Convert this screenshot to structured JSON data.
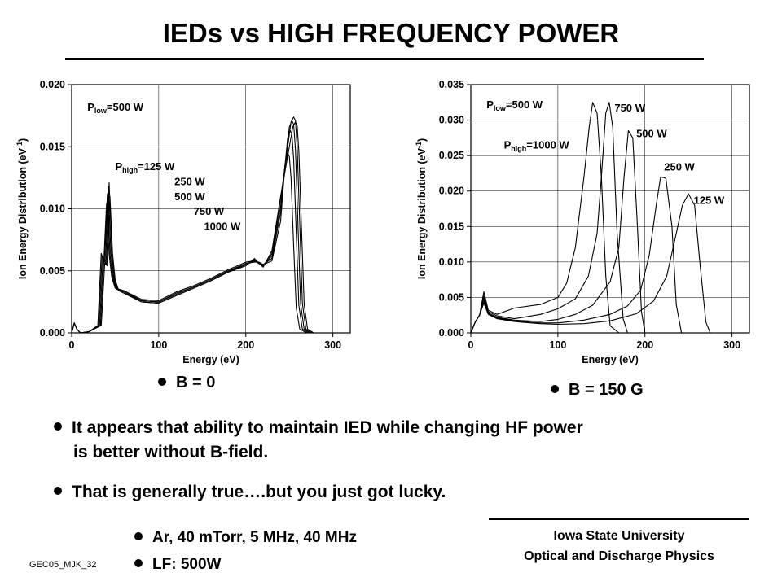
{
  "title": "IEDs vs HIGH FREQUENCY POWER",
  "left_label": "B = 0",
  "right_label": "B = 150 G",
  "bullets": {
    "line1": "It appears that ability to maintain IED while changing HF power",
    "line1b": "is better without B-field.",
    "line2": "That is generally true….but you just got lucky."
  },
  "conditions": [
    "Ar, 40 mTorr,  5 MHz, 40 MHz",
    "LF: 500W"
  ],
  "footer": {
    "line1": "Iowa State University",
    "line2": "Optical and Discharge Physics",
    "code": "GEC05_MJK_32"
  },
  "chart_data": [
    {
      "type": "line",
      "xlabel": "Energy (eV)",
      "ylabel": "Ion Energy Distribution (eV",
      "ylabel_sup": "-1",
      "ylabel_close": ")",
      "xlim": [
        0,
        320
      ],
      "ylim": [
        0,
        0.02
      ],
      "xticks": [
        0,
        100,
        200,
        300
      ],
      "xtick_labels": [
        "0",
        "100",
        "200",
        "300"
      ],
      "yticks": [
        0,
        0.005,
        0.01,
        0.015,
        0.02
      ],
      "ytick_labels": [
        "0.000",
        "0.005",
        "0.010",
        "0.015",
        "0.020"
      ],
      "annotations": [
        {
          "prefix": "P",
          "sub": "low",
          "suffix": "=500  W",
          "x": 18,
          "y": 0.0179
        },
        {
          "prefix": "P",
          "sub": "high",
          "suffix": "=125 W",
          "x": 50,
          "y": 0.0131
        },
        {
          "prefix": "",
          "sub": "",
          "suffix": "250 W",
          "x": 118,
          "y": 0.0119
        },
        {
          "prefix": "",
          "sub": "",
          "suffix": "500 W",
          "x": 118,
          "y": 0.0107
        },
        {
          "prefix": "",
          "sub": "",
          "suffix": "750 W",
          "x": 140,
          "y": 0.0095
        },
        {
          "prefix": "",
          "sub": "",
          "suffix": "1000 W",
          "x": 152,
          "y": 0.0083
        }
      ],
      "series": [
        {
          "x": [
            0,
            3,
            6,
            10,
            20,
            30,
            34,
            37,
            40,
            43,
            46,
            50,
            60,
            80,
            100,
            120,
            140,
            160,
            180,
            200,
            210,
            215,
            220,
            230,
            240,
            245,
            248,
            250,
            252,
            255,
            258,
            262,
            270,
            320
          ],
          "y": [
            0,
            0.0008,
            0.0003,
            0,
            0.0001,
            0.0006,
            0.0064,
            0.0058,
            0.0104,
            0.0063,
            0.0045,
            0.0036,
            0.0034,
            0.0027,
            0.0026,
            0.0033,
            0.0038,
            0.0044,
            0.0051,
            0.0057,
            0.0058,
            0.0057,
            0.0055,
            0.0058,
            0.009,
            0.0135,
            0.0145,
            0.0142,
            0.0125,
            0.007,
            0.002,
            0.0003,
            0,
            0
          ]
        },
        {
          "x": [
            0,
            3,
            6,
            10,
            20,
            31,
            35,
            38,
            41,
            44,
            47,
            51,
            60,
            80,
            100,
            120,
            140,
            160,
            180,
            200,
            210,
            215,
            220,
            230,
            240,
            248,
            251,
            253,
            255,
            258,
            261,
            265,
            272,
            320
          ],
          "y": [
            0,
            0.0008,
            0.0003,
            0,
            0.0001,
            0.0006,
            0.0062,
            0.0058,
            0.0112,
            0.0064,
            0.0044,
            0.0036,
            0.0034,
            0.0026,
            0.0025,
            0.0032,
            0.0037,
            0.0043,
            0.005,
            0.0056,
            0.0057,
            0.0057,
            0.0055,
            0.006,
            0.0097,
            0.0157,
            0.0163,
            0.016,
            0.014,
            0.008,
            0.0022,
            0.0003,
            0,
            0
          ]
        },
        {
          "x": [
            0,
            3,
            6,
            10,
            20,
            32,
            36,
            39,
            42,
            45,
            48,
            52,
            60,
            80,
            100,
            120,
            140,
            160,
            180,
            200,
            210,
            215,
            220,
            230,
            240,
            250,
            253,
            255,
            257,
            260,
            263,
            267,
            274,
            320
          ],
          "y": [
            0,
            0.0008,
            0.0003,
            0,
            0.0001,
            0.0006,
            0.006,
            0.0056,
            0.0118,
            0.0065,
            0.0044,
            0.0035,
            0.0033,
            0.0026,
            0.0025,
            0.0031,
            0.0037,
            0.0043,
            0.005,
            0.0055,
            0.0058,
            0.0056,
            0.0054,
            0.0062,
            0.0102,
            0.0166,
            0.0171,
            0.0168,
            0.0148,
            0.0085,
            0.0023,
            0.0003,
            0,
            0
          ]
        },
        {
          "x": [
            0,
            3,
            6,
            10,
            20,
            33,
            37,
            40,
            43,
            46,
            49,
            53,
            60,
            80,
            100,
            120,
            140,
            160,
            180,
            200,
            210,
            215,
            220,
            230,
            240,
            252,
            255,
            257,
            259,
            262,
            265,
            269,
            276,
            320
          ],
          "y": [
            0,
            0.0008,
            0.0003,
            0,
            0.0001,
            0.0006,
            0.0058,
            0.0055,
            0.0121,
            0.0065,
            0.0043,
            0.0035,
            0.0033,
            0.0025,
            0.0024,
            0.003,
            0.0036,
            0.0042,
            0.0049,
            0.0055,
            0.0059,
            0.0056,
            0.0054,
            0.0064,
            0.0108,
            0.017,
            0.0174,
            0.0171,
            0.015,
            0.0088,
            0.0024,
            0.0003,
            0,
            0
          ]
        },
        {
          "x": [
            0,
            3,
            6,
            10,
            20,
            34,
            38,
            41,
            44,
            47,
            50,
            54,
            60,
            80,
            100,
            120,
            140,
            160,
            180,
            200,
            210,
            215,
            220,
            230,
            240,
            254,
            257,
            259,
            261,
            264,
            267,
            271,
            278,
            320
          ],
          "y": [
            0,
            0.0008,
            0.0003,
            0,
            0.0001,
            0.0006,
            0.0056,
            0.0054,
            0.011,
            0.0064,
            0.0043,
            0.0034,
            0.0032,
            0.0025,
            0.0024,
            0.003,
            0.0036,
            0.0042,
            0.0049,
            0.0054,
            0.006,
            0.0056,
            0.0053,
            0.0066,
            0.011,
            0.0166,
            0.017,
            0.0167,
            0.0146,
            0.0085,
            0.0023,
            0.0003,
            0,
            0
          ]
        }
      ]
    },
    {
      "type": "line",
      "xlabel": "Energy (eV)",
      "ylabel": "Ion Energy Distribution (eV",
      "ylabel_sup": "-1",
      "ylabel_close": ")",
      "xlim": [
        0,
        320
      ],
      "ylim": [
        0,
        0.035
      ],
      "xticks": [
        0,
        100,
        200,
        300
      ],
      "xtick_labels": [
        "0",
        "100",
        "200",
        "300"
      ],
      "yticks": [
        0,
        0.005,
        0.01,
        0.015,
        0.02,
        0.025,
        0.03,
        0.035
      ],
      "ytick_labels": [
        "0.000",
        "0.005",
        "0.010",
        "0.015",
        "0.020",
        "0.025",
        "0.030",
        "0.035"
      ],
      "annotations": [
        {
          "prefix": "P",
          "sub": "low",
          "suffix": "=500  W",
          "x": 18,
          "y": 0.0317
        },
        {
          "prefix": "P",
          "sub": "high",
          "suffix": "=1000 W",
          "x": 38,
          "y": 0.026
        },
        {
          "prefix": "",
          "sub": "",
          "suffix": "750 W",
          "x": 165,
          "y": 0.0312
        },
        {
          "prefix": "",
          "sub": "",
          "suffix": "500 W",
          "x": 190,
          "y": 0.0276
        },
        {
          "prefix": "",
          "sub": "",
          "suffix": "250 W",
          "x": 222,
          "y": 0.0229
        },
        {
          "prefix": "",
          "sub": "",
          "suffix": "125 W",
          "x": 256,
          "y": 0.0182
        }
      ],
      "series": [
        {
          "x": [
            0,
            5,
            10,
            15,
            20,
            30,
            50,
            80,
            100,
            110,
            120,
            130,
            136,
            140,
            145,
            150,
            155,
            160,
            170,
            320
          ],
          "y": [
            0,
            0.0015,
            0.0025,
            0.0058,
            0.0032,
            0.0026,
            0.0035,
            0.004,
            0.005,
            0.007,
            0.012,
            0.022,
            0.029,
            0.0325,
            0.031,
            0.022,
            0.008,
            0.001,
            0,
            0
          ]
        },
        {
          "x": [
            0,
            5,
            10,
            15,
            20,
            30,
            50,
            80,
            100,
            120,
            135,
            145,
            150,
            155,
            159,
            163,
            168,
            175,
            180,
            320
          ],
          "y": [
            0,
            0.0015,
            0.0025,
            0.0052,
            0.003,
            0.0024,
            0.002,
            0.0026,
            0.0034,
            0.0048,
            0.008,
            0.014,
            0.022,
            0.031,
            0.0325,
            0.029,
            0.014,
            0.002,
            0,
            0
          ]
        },
        {
          "x": [
            0,
            5,
            10,
            15,
            20,
            30,
            50,
            80,
            100,
            120,
            140,
            160,
            170,
            176,
            181,
            186,
            191,
            196,
            200,
            320
          ],
          "y": [
            0,
            0.0015,
            0.0025,
            0.0048,
            0.0028,
            0.0022,
            0.0018,
            0.0016,
            0.0019,
            0.0026,
            0.0039,
            0.0072,
            0.012,
            0.022,
            0.0285,
            0.0275,
            0.016,
            0.003,
            0,
            0
          ]
        },
        {
          "x": [
            0,
            5,
            10,
            15,
            20,
            30,
            50,
            80,
            100,
            130,
            160,
            180,
            195,
            205,
            213,
            218,
            224,
            231,
            236,
            242,
            320
          ],
          "y": [
            0,
            0.0015,
            0.0025,
            0.0045,
            0.0027,
            0.0021,
            0.0017,
            0.0014,
            0.0014,
            0.0018,
            0.0026,
            0.0038,
            0.006,
            0.011,
            0.018,
            0.022,
            0.0218,
            0.015,
            0.004,
            0,
            0
          ]
        },
        {
          "x": [
            0,
            5,
            10,
            15,
            20,
            30,
            50,
            80,
            100,
            130,
            160,
            190,
            210,
            225,
            235,
            243,
            250,
            257,
            263,
            270,
            275,
            320
          ],
          "y": [
            0,
            0.0015,
            0.0025,
            0.0042,
            0.0026,
            0.002,
            0.0016,
            0.0013,
            0.0012,
            0.0013,
            0.0017,
            0.0027,
            0.0045,
            0.008,
            0.0135,
            0.018,
            0.0196,
            0.018,
            0.01,
            0.0015,
            0,
            0
          ]
        }
      ]
    }
  ]
}
